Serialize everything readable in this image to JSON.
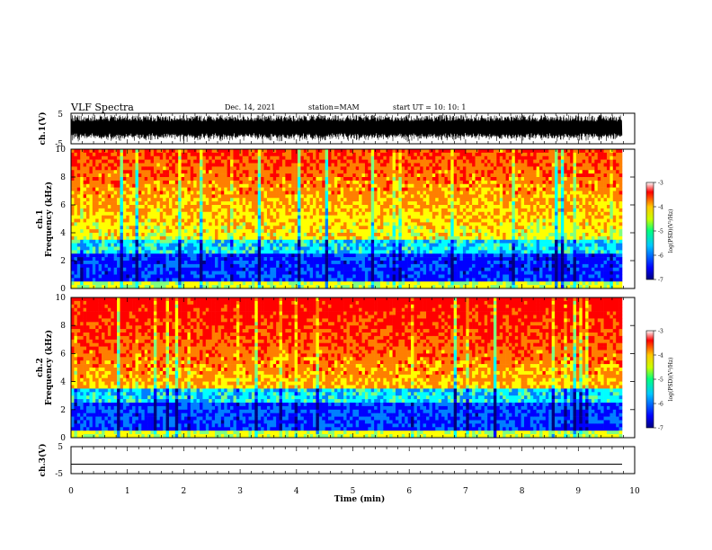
{
  "header": {
    "title": "VLF Spectra",
    "date": "Dec. 14, 2021",
    "station": "station=MAM",
    "start": "start  UT  =   10: 10: 1"
  },
  "chart_data": [
    {
      "type": "line",
      "name": "ch1-waveform",
      "ylabel": "ch.1(V)",
      "ylim": [
        -5,
        5
      ],
      "ytick_labels": [
        "-5",
        "5"
      ],
      "description_values": {
        "x_range_min": [
          0,
          9.85
        ],
        "amplitude_V": 5
      }
    },
    {
      "type": "heatmap",
      "name": "ch1-spectrogram",
      "ylabel": "ch.1\nFrequency (kHz)",
      "ylim": [
        0,
        10
      ],
      "ytick_labels": [
        "0",
        "2",
        "4",
        "6",
        "8",
        "10"
      ],
      "colorbar": {
        "label": "log(PSD)(V²/Hz)",
        "range": [
          -7,
          -3
        ],
        "tick_labels": [
          "-3",
          "-4",
          "-5",
          "-6",
          "-7"
        ]
      }
    },
    {
      "type": "heatmap",
      "name": "ch2-spectrogram",
      "ylabel": "ch.2\nFrequency (kHz)",
      "ylim": [
        0,
        10
      ],
      "ytick_labels": [
        "0",
        "2",
        "4",
        "6",
        "8",
        "10"
      ],
      "colorbar": {
        "label": "log(PSD)(V²/Hz)",
        "range": [
          -7,
          -3
        ],
        "tick_labels": [
          "-3",
          "-4",
          "-5",
          "-6",
          "-7"
        ]
      }
    },
    {
      "type": "line",
      "name": "ch3-waveform",
      "ylabel": "ch.3(V)",
      "ylim": [
        -5,
        5
      ],
      "ytick_labels": [
        "-5",
        "5"
      ],
      "series": [
        {
          "values": [
            -1.5,
            -1.5
          ]
        }
      ]
    }
  ],
  "xaxis": {
    "label": "Time  (min)",
    "range": [
      0,
      10
    ],
    "tick_labels": [
      "0",
      "1",
      "2",
      "3",
      "4",
      "5",
      "6",
      "7",
      "8",
      "9",
      "10"
    ]
  },
  "colorscale": [
    "#00007f",
    "#0000ff",
    "#007fff",
    "#00ffff",
    "#7fff7f",
    "#ffff00",
    "#ff7f00",
    "#ff0000",
    "#ffffff"
  ]
}
